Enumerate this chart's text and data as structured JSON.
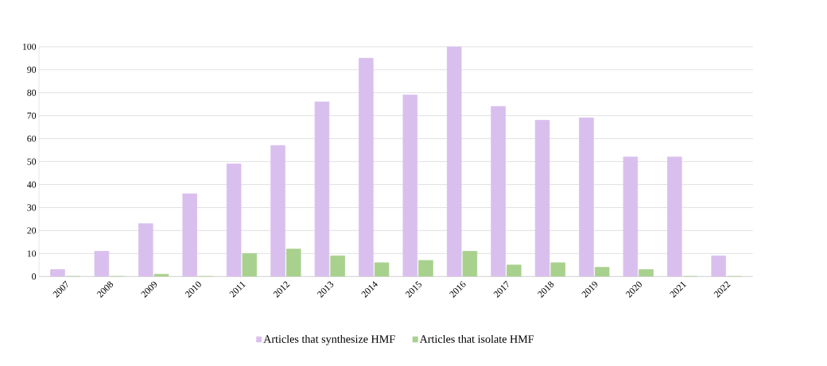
{
  "chart_data": {
    "type": "bar",
    "categories": [
      "2007",
      "2008",
      "2009",
      "2010",
      "2011",
      "2012",
      "2013",
      "2014",
      "2015",
      "2016",
      "2017",
      "2018",
      "2019",
      "2020",
      "2021",
      "2022"
    ],
    "series": [
      {
        "name": "Articles that synthesize HMF",
        "color": "#d9bfee",
        "values": [
          3,
          11,
          23,
          36,
          49,
          57,
          76,
          95,
          79,
          100,
          74,
          68,
          69,
          52,
          52,
          9
        ]
      },
      {
        "name": "Articles that isolate HMF",
        "color": "#a9d18e",
        "values": [
          0,
          0,
          1,
          0,
          10,
          12,
          9,
          6,
          7,
          11,
          5,
          6,
          4,
          3,
          0,
          0
        ]
      }
    ],
    "ylim": [
      0,
      100
    ],
    "yticks": [
      0,
      10,
      20,
      30,
      40,
      50,
      60,
      70,
      80,
      90,
      100
    ],
    "grid": "y",
    "legend": "bottom"
  }
}
